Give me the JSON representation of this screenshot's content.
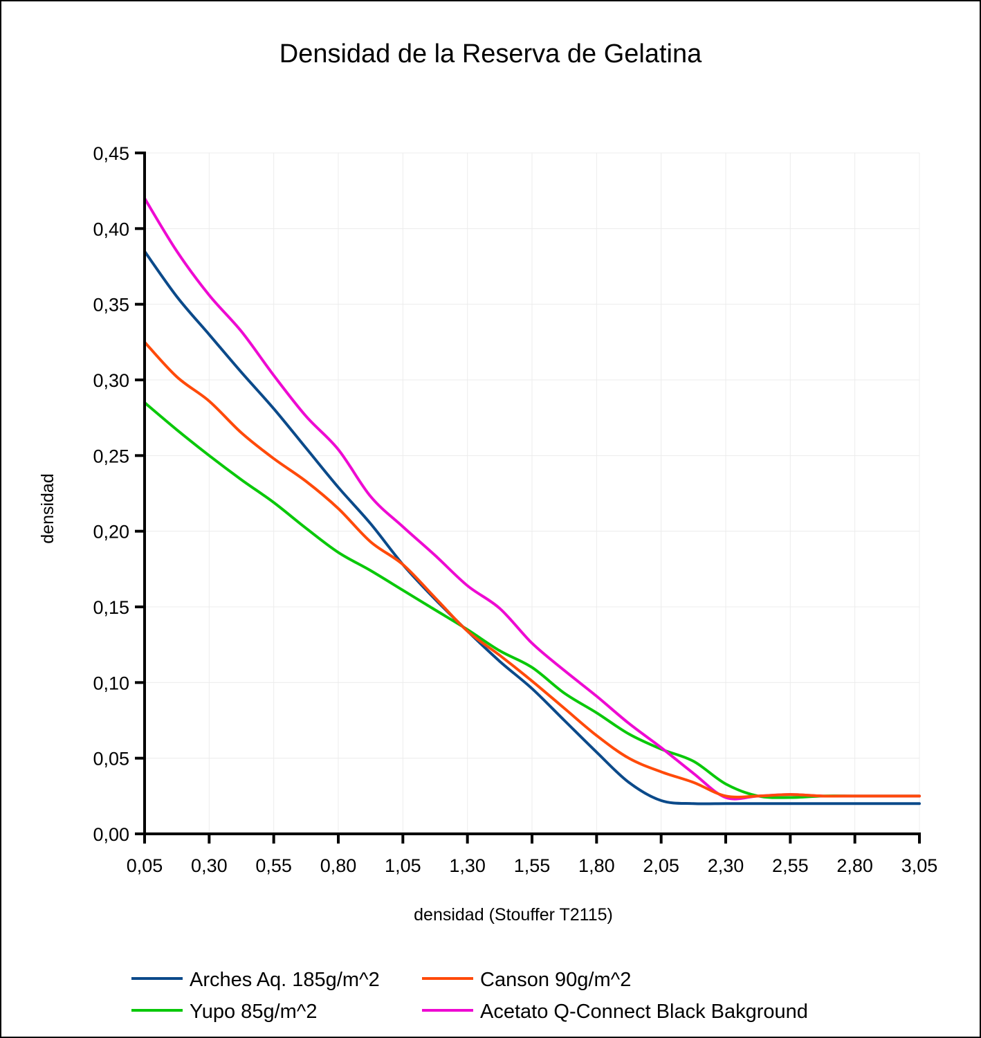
{
  "chart_data": {
    "type": "line",
    "title": "Densidad de la Reserva de Gelatina",
    "xlabel": "densidad (Stouffer T2115)",
    "ylabel": "densidad",
    "xlim": [
      0.05,
      3.05
    ],
    "ylim": [
      0.0,
      0.45
    ],
    "grid": true,
    "legend_position": "bottom",
    "x_ticks": [
      "0,05",
      "0,30",
      "0,55",
      "0,80",
      "1,05",
      "1,30",
      "1,55",
      "1,80",
      "2,05",
      "2,30",
      "2,55",
      "2,80",
      "3,05"
    ],
    "x_tick_values": [
      0.05,
      0.3,
      0.55,
      0.8,
      1.05,
      1.3,
      1.55,
      1.8,
      2.05,
      2.3,
      2.55,
      2.8,
      3.05
    ],
    "y_ticks": [
      "0,00",
      "0,05",
      "0,10",
      "0,15",
      "0,20",
      "0,25",
      "0,30",
      "0,35",
      "0,40",
      "0,45"
    ],
    "y_tick_values": [
      0.0,
      0.05,
      0.1,
      0.15,
      0.2,
      0.25,
      0.3,
      0.35,
      0.4,
      0.45
    ],
    "x": [
      0.05,
      0.175,
      0.3,
      0.425,
      0.55,
      0.675,
      0.8,
      0.925,
      1.05,
      1.175,
      1.3,
      1.425,
      1.55,
      1.675,
      1.8,
      1.925,
      2.05,
      2.175,
      2.3,
      2.425,
      2.55,
      2.675,
      2.8,
      2.925,
      3.05
    ],
    "series": [
      {
        "name": "Arches Aq. 185g/m^2",
        "color": "#0b4a8a",
        "values": [
          0.385,
          0.355,
          0.33,
          0.305,
          0.281,
          0.255,
          0.229,
          0.205,
          0.178,
          0.155,
          0.134,
          0.114,
          0.096,
          0.075,
          0.054,
          0.034,
          0.022,
          0.02,
          0.02,
          0.02,
          0.02,
          0.02,
          0.02,
          0.02,
          0.02
        ]
      },
      {
        "name": "Canson 90g/m^2",
        "color": "#ff4a0a",
        "values": [
          0.325,
          0.302,
          0.286,
          0.265,
          0.248,
          0.233,
          0.215,
          0.193,
          0.178,
          0.156,
          0.134,
          0.118,
          0.101,
          0.083,
          0.065,
          0.05,
          0.041,
          0.034,
          0.025,
          0.025,
          0.026,
          0.025,
          0.025,
          0.025,
          0.025
        ]
      },
      {
        "name": "Yupo 85g/m^2",
        "color": "#0ac80a",
        "values": [
          0.285,
          0.267,
          0.25,
          0.234,
          0.219,
          0.202,
          0.186,
          0.174,
          0.161,
          0.148,
          0.135,
          0.121,
          0.11,
          0.093,
          0.08,
          0.066,
          0.056,
          0.048,
          0.033,
          0.025,
          0.024,
          0.025,
          0.025,
          0.025,
          0.025
        ]
      },
      {
        "name": "Acetato Q-Connect Black Bakground",
        "color": "#ee0ad2",
        "values": [
          0.42,
          0.385,
          0.356,
          0.332,
          0.303,
          0.276,
          0.254,
          0.223,
          0.203,
          0.184,
          0.164,
          0.149,
          0.126,
          0.108,
          0.091,
          0.073,
          0.057,
          0.04,
          0.024,
          0.025,
          0.026,
          0.025,
          0.025,
          0.025,
          0.025
        ]
      }
    ]
  }
}
